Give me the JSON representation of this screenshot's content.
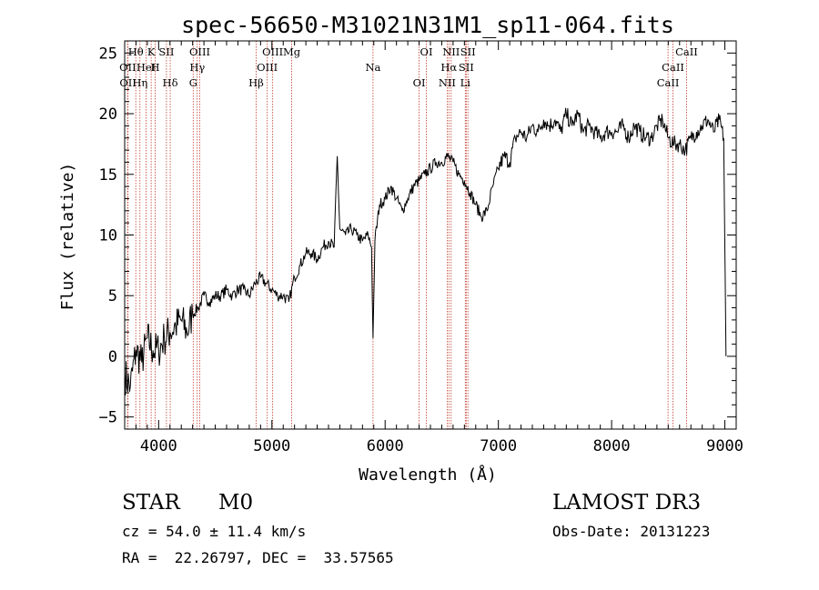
{
  "chart_data": {
    "type": "line",
    "title": "spec-56650-M31021N31M1_sp11-064.fits",
    "xlabel": "Wavelength (Å)",
    "ylabel": "Flux (relative)",
    "xlim": [
      3700,
      9100
    ],
    "ylim": [
      -6,
      26
    ],
    "xticks": [
      4000,
      5000,
      6000,
      7000,
      8000,
      9000
    ],
    "xtick_labels": [
      "4000",
      "5000",
      "6000",
      "7000",
      "8000",
      "9000"
    ],
    "yticks": [
      -5,
      0,
      5,
      10,
      15,
      20,
      25
    ],
    "ytick_labels": [
      "−5",
      "0",
      "5",
      "10",
      "15",
      "20",
      "25"
    ],
    "series": [
      {
        "name": "spectrum",
        "x": [
          3700,
          3750,
          3800,
          3850,
          3900,
          3950,
          4000,
          4050,
          4100,
          4150,
          4200,
          4250,
          4300,
          4350,
          4400,
          4450,
          4500,
          4550,
          4600,
          4650,
          4700,
          4750,
          4800,
          4850,
          4900,
          4950,
          5000,
          5050,
          5100,
          5150,
          5200,
          5250,
          5300,
          5350,
          5400,
          5450,
          5500,
          5550,
          5577,
          5600,
          5650,
          5700,
          5750,
          5800,
          5850,
          5880,
          5893,
          5910,
          5950,
          6000,
          6050,
          6100,
          6150,
          6200,
          6250,
          6300,
          6350,
          6400,
          6450,
          6500,
          6550,
          6600,
          6650,
          6700,
          6750,
          6800,
          6850,
          6900,
          6950,
          7000,
          7050,
          7100,
          7150,
          7200,
          7250,
          7300,
          7350,
          7400,
          7450,
          7500,
          7550,
          7600,
          7650,
          7700,
          7750,
          7800,
          7850,
          7900,
          7950,
          8000,
          8050,
          8100,
          8150,
          8200,
          8250,
          8300,
          8350,
          8400,
          8450,
          8500,
          8550,
          8600,
          8650,
          8700,
          8750,
          8800,
          8850,
          8900,
          8950,
          8990,
          9010
        ],
        "y": [
          -1.5,
          -2.5,
          0.5,
          -0.5,
          1.5,
          0.5,
          0.5,
          1.5,
          2.0,
          2.5,
          3.0,
          2.0,
          3.5,
          4.0,
          5.0,
          4.5,
          5.0,
          5.0,
          5.5,
          5.0,
          5.5,
          5.5,
          5.0,
          6.0,
          6.5,
          6.0,
          5.5,
          5.0,
          5.0,
          4.5,
          6.5,
          7.5,
          8.5,
          8.5,
          8.0,
          9.0,
          9.5,
          9.0,
          16.5,
          10.5,
          10.0,
          10.5,
          10.0,
          9.5,
          10.0,
          9.0,
          1.5,
          9.5,
          12.5,
          13.0,
          14.0,
          13.0,
          12.0,
          13.0,
          14.0,
          14.5,
          15.0,
          15.5,
          16.0,
          16.0,
          16.5,
          16.0,
          15.0,
          14.5,
          13.5,
          12.5,
          11.5,
          12.0,
          14.0,
          15.5,
          16.5,
          16.0,
          18.0,
          18.5,
          18.0,
          19.0,
          18.5,
          19.5,
          19.0,
          19.5,
          18.5,
          20.0,
          19.0,
          20.0,
          18.5,
          19.0,
          18.5,
          18.0,
          18.5,
          18.5,
          18.5,
          19.0,
          18.0,
          19.0,
          18.5,
          18.0,
          18.0,
          19.0,
          19.5,
          18.0,
          17.5,
          17.5,
          17.0,
          18.0,
          18.5,
          19.0,
          19.5,
          18.5,
          19.5,
          18.0,
          0.0
        ]
      }
    ],
    "annotations": [
      {
        "label": "Hθ",
        "wavelength": 3798
      },
      {
        "label": "OII",
        "wavelength": 3727
      },
      {
        "label": "OII",
        "wavelength": 3729
      },
      {
        "label": "K",
        "wavelength": 3934
      },
      {
        "label": "HeI",
        "wavelength": 3889
      },
      {
        "label": "Hη",
        "wavelength": 3835
      },
      {
        "label": "SII",
        "wavelength": 4069
      },
      {
        "label": "H",
        "wavelength": 3969
      },
      {
        "label": "Hδ",
        "wavelength": 4102
      },
      {
        "label": "OIII",
        "wavelength": 4363
      },
      {
        "label": "Hγ",
        "wavelength": 4341
      },
      {
        "label": "G",
        "wavelength": 4305
      },
      {
        "label": "OIII",
        "wavelength": 5007
      },
      {
        "label": "OIII",
        "wavelength": 4959
      },
      {
        "label": "Hβ",
        "wavelength": 4861
      },
      {
        "label": "Mg",
        "wavelength": 5175
      },
      {
        "label": "Na",
        "wavelength": 5893
      },
      {
        "label": "OI",
        "wavelength": 6300
      },
      {
        "label": "OI",
        "wavelength": 6364
      },
      {
        "label": "Hα",
        "wavelength": 6563
      },
      {
        "label": "NII",
        "wavelength": 6548
      },
      {
        "label": "NII",
        "wavelength": 6583
      },
      {
        "label": "SII",
        "wavelength": 6716
      },
      {
        "label": "Li",
        "wavelength": 6708
      },
      {
        "label": "SII",
        "wavelength": 6731
      },
      {
        "label": "CaII",
        "wavelength": 8542
      },
      {
        "label": "CaII",
        "wavelength": 8498
      },
      {
        "label": "CaII",
        "wavelength": 8662
      }
    ]
  },
  "info": {
    "class_label": "STAR",
    "subclass": "M0",
    "survey": "LAMOST DR3",
    "cz": "cz = 54.0 ± 11.4 km/s",
    "obs_date": "Obs-Date: 20131223",
    "coords": "RA =  22.26797, DEC =  33.57565"
  }
}
